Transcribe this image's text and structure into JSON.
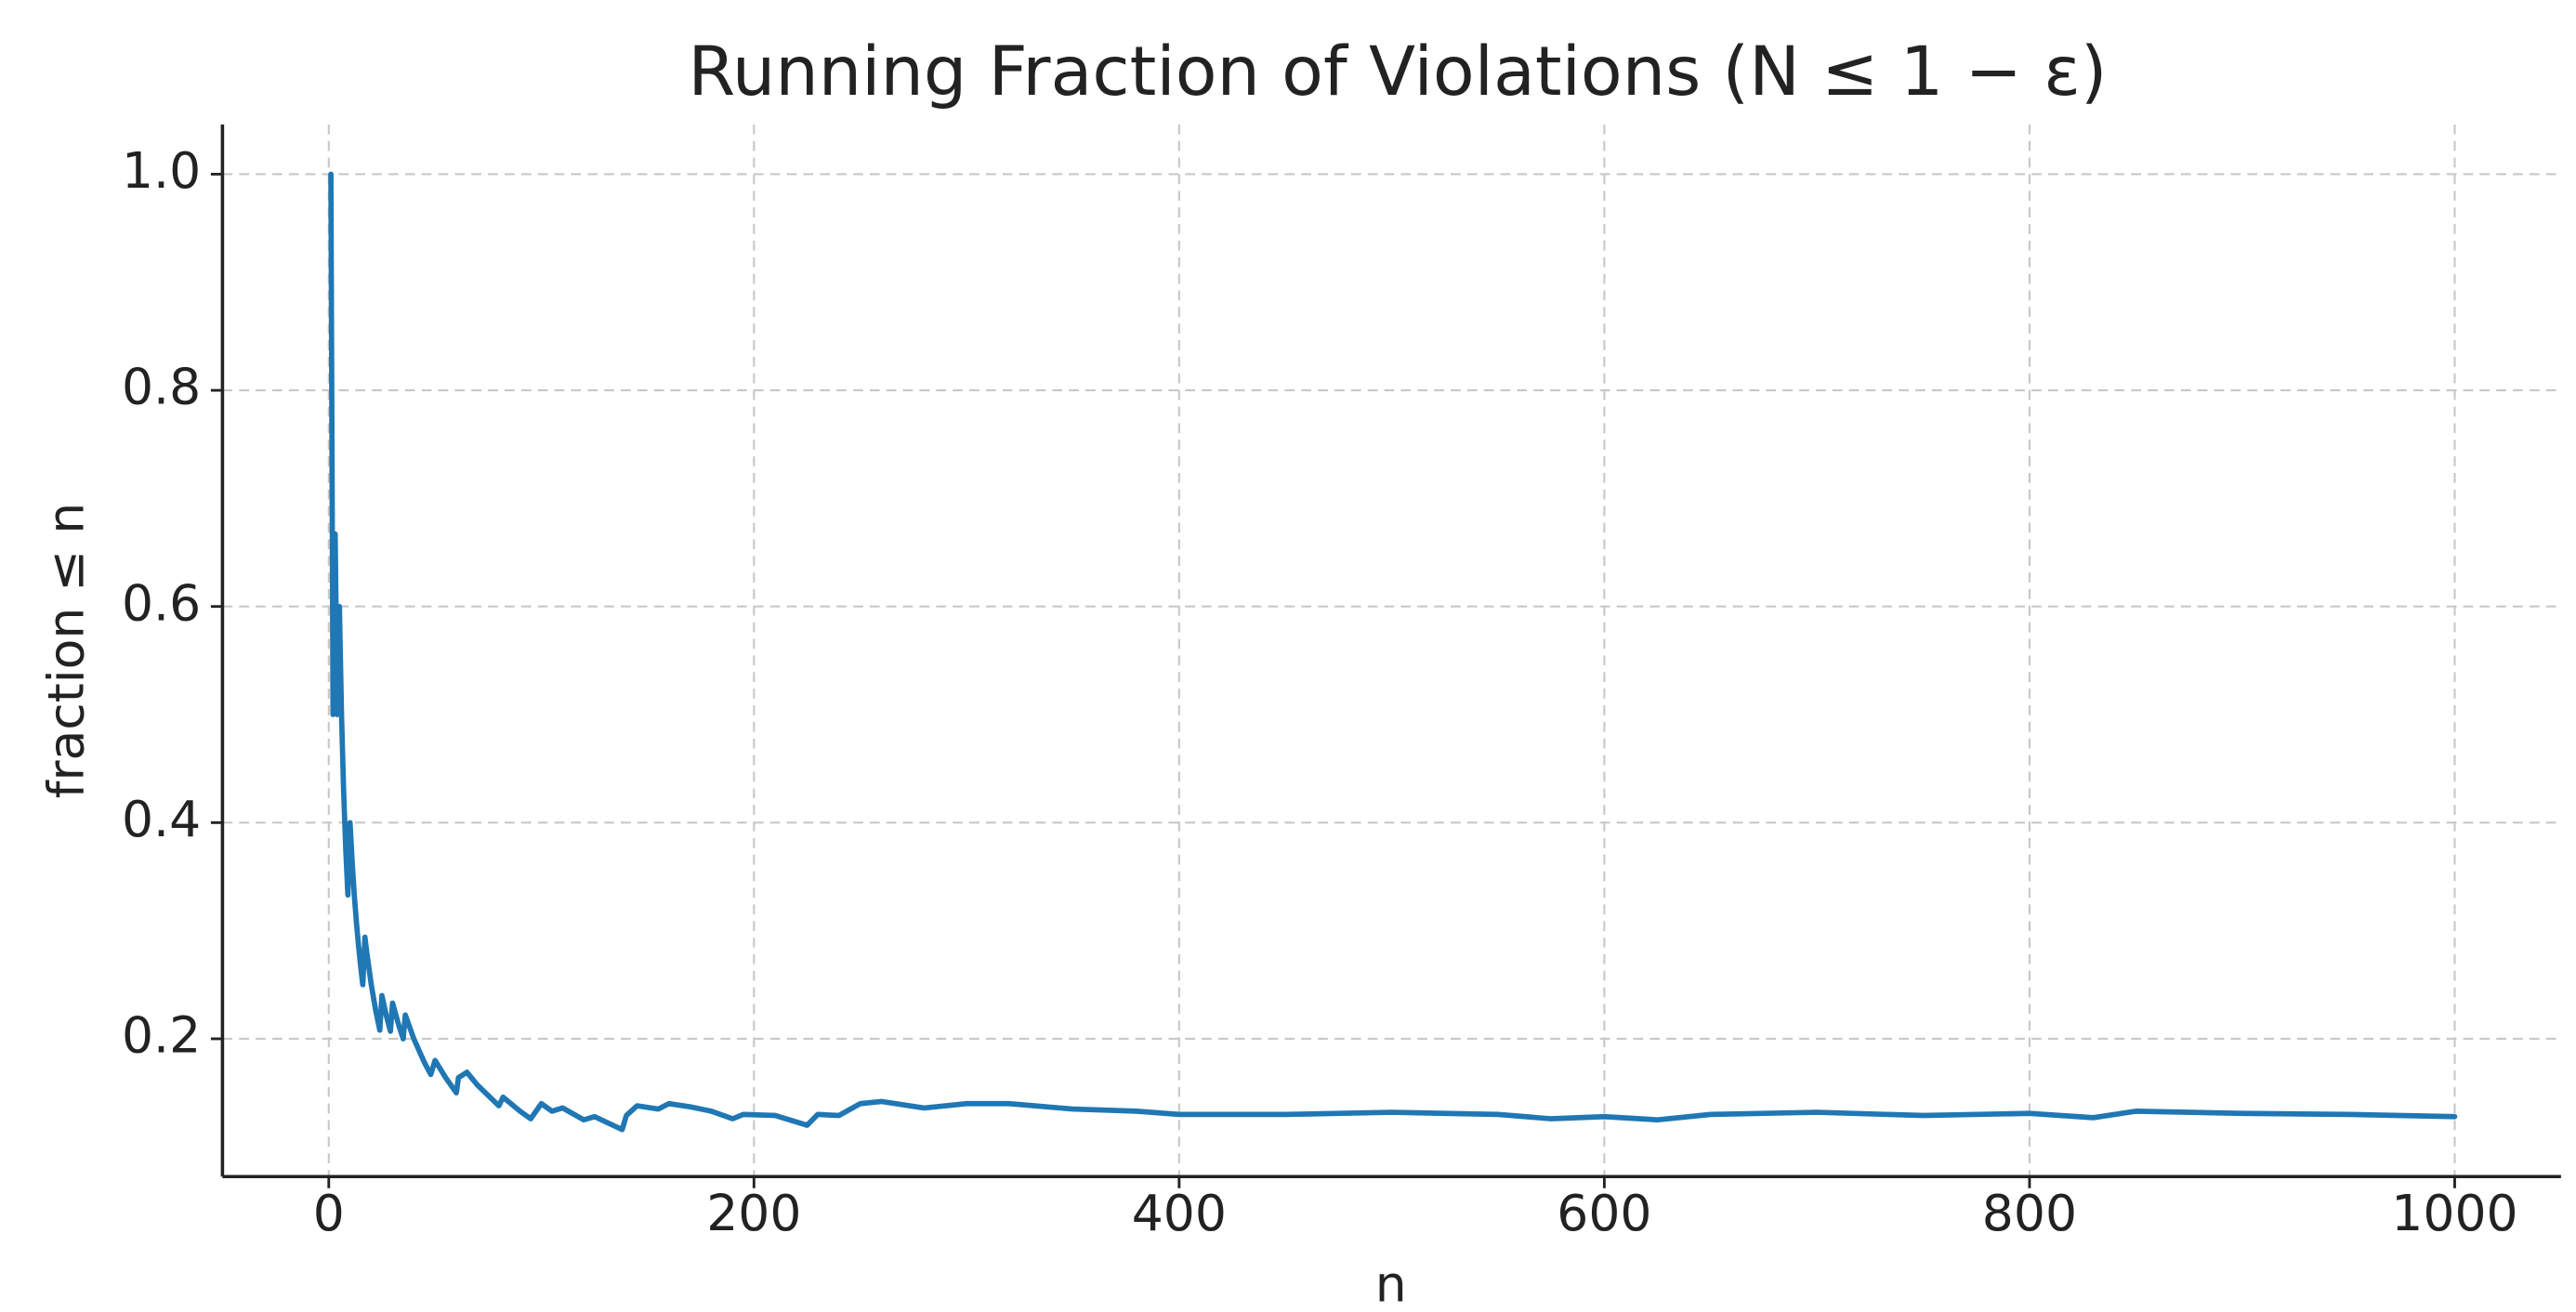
{
  "chart_data": {
    "type": "line",
    "title": "Running Fraction of Violations (N ≤ 1 − ε)",
    "xlabel": "n",
    "ylabel": "fraction ≤ n",
    "x": [
      1,
      2,
      3,
      4,
      5,
      6,
      7,
      8,
      9,
      10,
      11,
      12,
      13,
      14,
      15,
      16,
      17,
      18,
      20,
      22,
      24,
      25,
      27,
      29,
      30,
      33,
      35,
      36,
      40,
      45,
      48,
      50,
      55,
      60,
      61,
      65,
      70,
      80,
      82,
      90,
      95,
      100,
      105,
      110,
      120,
      125,
      138,
      140,
      145,
      155,
      160,
      170,
      180,
      190,
      195,
      210,
      225,
      230,
      240,
      250,
      260,
      280,
      300,
      320,
      350,
      380,
      400,
      450,
      500,
      550,
      575,
      600,
      625,
      650,
      700,
      750,
      800,
      830,
      850,
      900,
      950,
      1000
    ],
    "values": [
      1.0,
      0.5,
      0.667,
      0.5,
      0.6,
      0.5,
      0.429,
      0.375,
      0.333,
      0.4,
      0.364,
      0.333,
      0.308,
      0.286,
      0.267,
      0.25,
      0.294,
      0.278,
      0.25,
      0.227,
      0.208,
      0.24,
      0.222,
      0.207,
      0.233,
      0.212,
      0.2,
      0.222,
      0.2,
      0.178,
      0.167,
      0.18,
      0.164,
      0.15,
      0.164,
      0.169,
      0.157,
      0.138,
      0.146,
      0.133,
      0.126,
      0.14,
      0.133,
      0.136,
      0.125,
      0.128,
      0.116,
      0.129,
      0.138,
      0.135,
      0.14,
      0.137,
      0.133,
      0.126,
      0.13,
      0.129,
      0.12,
      0.13,
      0.129,
      0.14,
      0.142,
      0.136,
      0.14,
      0.14,
      0.135,
      0.133,
      0.13,
      0.13,
      0.132,
      0.13,
      0.126,
      0.128,
      0.125,
      0.13,
      0.132,
      0.129,
      0.131,
      0.127,
      0.133,
      0.131,
      0.13,
      0.128
    ],
    "color": "#1f77b4",
    "xlim": [
      -50,
      1050
    ],
    "ylim": [
      0.0725,
      1.046
    ],
    "xticks": [
      0,
      200,
      400,
      600,
      800,
      1000
    ],
    "yticks": [
      0.2,
      0.4,
      0.6,
      0.8,
      {
        "value": 1,
        "label": "1.0"
      }
    ],
    "grid": true
  }
}
